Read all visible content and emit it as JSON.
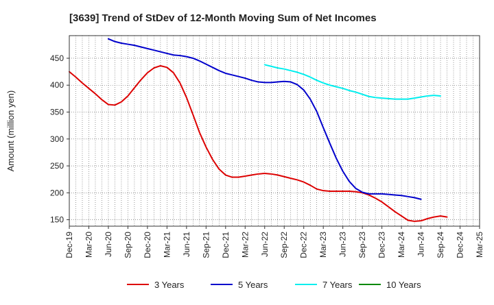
{
  "chart_data": {
    "type": "line",
    "title": "[3639]  Trend of StDev of 12-Month Moving Sum of Net Incomes",
    "xlabel": "",
    "ylabel": "Amount (million yen)",
    "x_ticks": [
      "Dec-19",
      "Mar-20",
      "Jun-20",
      "Sep-20",
      "Dec-20",
      "Mar-21",
      "Jun-21",
      "Sep-21",
      "Dec-21",
      "Mar-22",
      "Jun-22",
      "Sep-22",
      "Dec-22",
      "Mar-23",
      "Jun-23",
      "Sep-23",
      "Dec-23",
      "Mar-24",
      "Jun-24",
      "Sep-24",
      "Dec-24",
      "Mar-25"
    ],
    "y_ticks": [
      150,
      200,
      250,
      300,
      350,
      400,
      450
    ],
    "ylim": [
      138,
      492
    ],
    "grid": true,
    "legend_position": "bottom",
    "series": [
      {
        "name": "3 Years",
        "color": "#dd0000",
        "points": [
          [
            0,
            425
          ],
          [
            1,
            415
          ],
          [
            2,
            404
          ],
          [
            3,
            394
          ],
          [
            4,
            384
          ],
          [
            5,
            373
          ],
          [
            6,
            364
          ],
          [
            7,
            363
          ],
          [
            8,
            369
          ],
          [
            9,
            380
          ],
          [
            10,
            395
          ],
          [
            11,
            410
          ],
          [
            12,
            423
          ],
          [
            13,
            432
          ],
          [
            14,
            436
          ],
          [
            15,
            433
          ],
          [
            16,
            423
          ],
          [
            17,
            404
          ],
          [
            18,
            377
          ],
          [
            19,
            345
          ],
          [
            20,
            312
          ],
          [
            21,
            285
          ],
          [
            22,
            262
          ],
          [
            23,
            244
          ],
          [
            24,
            233
          ],
          [
            25,
            229
          ],
          [
            26,
            229
          ],
          [
            27,
            231
          ],
          [
            28,
            233
          ],
          [
            29,
            235
          ],
          [
            30,
            236
          ],
          [
            31,
            235
          ],
          [
            32,
            233
          ],
          [
            33,
            230
          ],
          [
            34,
            227
          ],
          [
            35,
            224
          ],
          [
            36,
            220
          ],
          [
            37,
            214
          ],
          [
            38,
            207
          ],
          [
            39,
            204
          ],
          [
            40,
            203
          ],
          [
            41,
            203
          ],
          [
            42,
            203
          ],
          [
            43,
            203
          ],
          [
            44,
            202
          ],
          [
            45,
            200
          ],
          [
            46,
            196
          ],
          [
            47,
            190
          ],
          [
            48,
            183
          ],
          [
            49,
            174
          ],
          [
            50,
            165
          ],
          [
            51,
            157
          ],
          [
            52,
            149
          ],
          [
            53,
            147
          ],
          [
            54,
            148
          ],
          [
            55,
            152
          ],
          [
            56,
            155
          ],
          [
            57,
            157
          ],
          [
            58,
            155
          ]
        ]
      },
      {
        "name": "5 Years",
        "color": "#0000cc",
        "points": [
          [
            6,
            486
          ],
          [
            7,
            481
          ],
          [
            8,
            478
          ],
          [
            9,
            476
          ],
          [
            10,
            474
          ],
          [
            11,
            471
          ],
          [
            12,
            468
          ],
          [
            13,
            465
          ],
          [
            14,
            462
          ],
          [
            15,
            459
          ],
          [
            16,
            456
          ],
          [
            17,
            455
          ],
          [
            18,
            453
          ],
          [
            19,
            450
          ],
          [
            20,
            445
          ],
          [
            21,
            439
          ],
          [
            22,
            433
          ],
          [
            23,
            427
          ],
          [
            24,
            422
          ],
          [
            25,
            419
          ],
          [
            26,
            416
          ],
          [
            27,
            413
          ],
          [
            28,
            409
          ],
          [
            29,
            406
          ],
          [
            30,
            405
          ],
          [
            31,
            405
          ],
          [
            32,
            406
          ],
          [
            33,
            407
          ],
          [
            34,
            406
          ],
          [
            35,
            401
          ],
          [
            36,
            391
          ],
          [
            37,
            374
          ],
          [
            38,
            351
          ],
          [
            39,
            321
          ],
          [
            40,
            292
          ],
          [
            41,
            264
          ],
          [
            42,
            240
          ],
          [
            43,
            221
          ],
          [
            44,
            208
          ],
          [
            45,
            201
          ],
          [
            46,
            198
          ],
          [
            47,
            198
          ],
          [
            48,
            198
          ],
          [
            49,
            197
          ],
          [
            50,
            196
          ],
          [
            51,
            195
          ],
          [
            52,
            193
          ],
          [
            53,
            191
          ],
          [
            54,
            188
          ]
        ]
      },
      {
        "name": "7 Years",
        "color": "#00eeee",
        "points": [
          [
            30,
            438
          ],
          [
            31,
            435
          ],
          [
            32,
            432
          ],
          [
            33,
            430
          ],
          [
            34,
            427
          ],
          [
            35,
            424
          ],
          [
            36,
            420
          ],
          [
            37,
            415
          ],
          [
            38,
            409
          ],
          [
            39,
            404
          ],
          [
            40,
            400
          ],
          [
            41,
            397
          ],
          [
            42,
            394
          ],
          [
            43,
            390
          ],
          [
            44,
            387
          ],
          [
            45,
            383
          ],
          [
            46,
            379
          ],
          [
            47,
            377
          ],
          [
            48,
            376
          ],
          [
            49,
            375
          ],
          [
            50,
            374
          ],
          [
            51,
            374
          ],
          [
            52,
            374
          ],
          [
            53,
            376
          ],
          [
            54,
            378
          ],
          [
            55,
            380
          ],
          [
            56,
            381
          ],
          [
            57,
            380
          ]
        ]
      },
      {
        "name": "10 Years",
        "color": "#008800",
        "points": []
      }
    ]
  }
}
